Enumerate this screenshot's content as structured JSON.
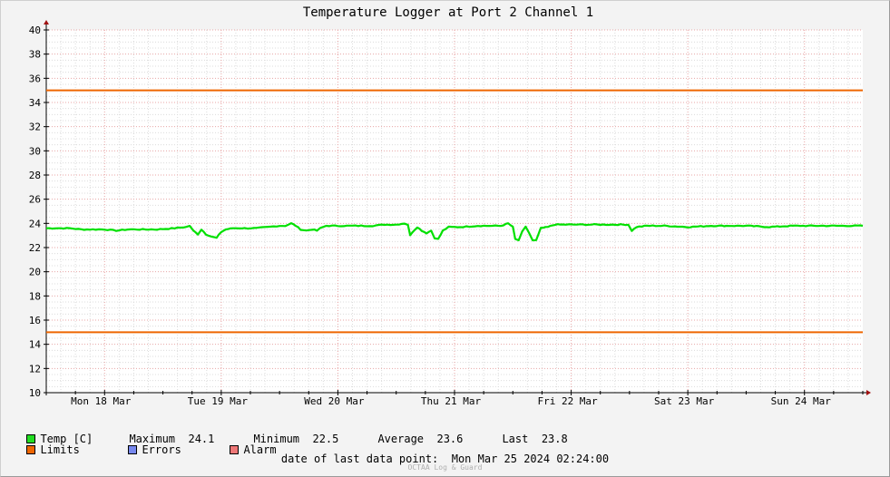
{
  "chart_data": {
    "type": "line",
    "title": "Temperature Logger at Port 2 Channel 1",
    "xlabel": "",
    "ylabel": "",
    "x_start_label": "Mon 18 Mar",
    "x_tick_labels": [
      "Mon 18 Mar",
      "Tue 19 Mar",
      "Wed 20 Mar",
      "Thu 21 Mar",
      "Fri 22 Mar",
      "Sat 23 Mar",
      "Sun 24 Mar"
    ],
    "x_range_days": [
      0,
      7
    ],
    "ylim": [
      10,
      40
    ],
    "y_ticks": [
      10,
      12,
      14,
      16,
      18,
      20,
      22,
      24,
      26,
      28,
      30,
      32,
      34,
      36,
      38,
      40
    ],
    "grid": true,
    "series": [
      {
        "name": "Temp [C]",
        "color": "#00e000",
        "points": [
          [
            0.0,
            23.6
          ],
          [
            0.1,
            23.6
          ],
          [
            0.2,
            23.6
          ],
          [
            0.3,
            23.5
          ],
          [
            0.4,
            23.5
          ],
          [
            0.5,
            23.5
          ],
          [
            0.6,
            23.4
          ],
          [
            0.7,
            23.5
          ],
          [
            0.8,
            23.5
          ],
          [
            0.95,
            23.5
          ],
          [
            1.1,
            23.6
          ],
          [
            1.2,
            23.7
          ],
          [
            1.23,
            23.8
          ],
          [
            1.26,
            23.4
          ],
          [
            1.3,
            23.1
          ],
          [
            1.33,
            23.5
          ],
          [
            1.37,
            23.1
          ],
          [
            1.42,
            22.9
          ],
          [
            1.46,
            22.8
          ],
          [
            1.5,
            23.3
          ],
          [
            1.54,
            23.5
          ],
          [
            1.6,
            23.6
          ],
          [
            1.7,
            23.6
          ],
          [
            1.8,
            23.6
          ],
          [
            1.9,
            23.7
          ],
          [
            2.0,
            23.8
          ],
          [
            2.05,
            23.8
          ],
          [
            2.1,
            24.0
          ],
          [
            2.14,
            23.8
          ],
          [
            2.18,
            23.5
          ],
          [
            2.23,
            23.4
          ],
          [
            2.28,
            23.5
          ],
          [
            2.32,
            23.4
          ],
          [
            2.35,
            23.6
          ],
          [
            2.4,
            23.8
          ],
          [
            2.5,
            23.8
          ],
          [
            2.6,
            23.8
          ],
          [
            2.7,
            23.8
          ],
          [
            2.8,
            23.8
          ],
          [
            2.9,
            23.9
          ],
          [
            3.0,
            23.9
          ],
          [
            3.07,
            24.0
          ],
          [
            3.1,
            23.9
          ],
          [
            3.12,
            23.0
          ],
          [
            3.14,
            23.3
          ],
          [
            3.18,
            23.7
          ],
          [
            3.22,
            23.4
          ],
          [
            3.26,
            23.2
          ],
          [
            3.3,
            23.4
          ],
          [
            3.33,
            22.8
          ],
          [
            3.36,
            22.7
          ],
          [
            3.4,
            23.4
          ],
          [
            3.45,
            23.7
          ],
          [
            3.55,
            23.7
          ],
          [
            3.7,
            23.8
          ],
          [
            3.8,
            23.8
          ],
          [
            3.9,
            23.8
          ],
          [
            3.96,
            24.0
          ],
          [
            4.0,
            23.7
          ],
          [
            4.02,
            22.7
          ],
          [
            4.05,
            22.6
          ],
          [
            4.08,
            23.3
          ],
          [
            4.11,
            23.7
          ],
          [
            4.14,
            23.2
          ],
          [
            4.17,
            22.6
          ],
          [
            4.2,
            22.6
          ],
          [
            4.24,
            23.6
          ],
          [
            4.3,
            23.7
          ],
          [
            4.36,
            23.9
          ],
          [
            4.5,
            23.9
          ],
          [
            4.6,
            23.9
          ],
          [
            4.7,
            23.9
          ],
          [
            4.8,
            23.9
          ],
          [
            4.9,
            23.9
          ],
          [
            4.99,
            23.9
          ],
          [
            5.02,
            23.4
          ],
          [
            5.06,
            23.7
          ],
          [
            5.15,
            23.8
          ],
          [
            5.3,
            23.8
          ],
          [
            5.5,
            23.7
          ],
          [
            5.7,
            23.8
          ],
          [
            5.9,
            23.8
          ],
          [
            6.0,
            23.8
          ],
          [
            6.2,
            23.7
          ],
          [
            6.4,
            23.8
          ],
          [
            6.6,
            23.8
          ],
          [
            6.8,
            23.8
          ],
          [
            7.0,
            23.8
          ]
        ]
      },
      {
        "name": "Limits",
        "color": "#ee6600",
        "constant_values": [
          35,
          15
        ]
      }
    ]
  },
  "legend": {
    "temp_label": "Temp [C]",
    "maximum_label": "Maximum",
    "maximum_value": "24.1",
    "minimum_label": "Minimum",
    "minimum_value": "22.5",
    "average_label": "Average",
    "average_value": "23.6",
    "last_label": "Last",
    "last_value": "23.8",
    "limits_label": "Limits",
    "errors_label": "Errors",
    "alarm_label": "Alarm",
    "colors": {
      "temp": "#22dd22",
      "limits": "#ee6600",
      "errors": "#7788ee",
      "alarm": "#ee7777"
    }
  },
  "footer": {
    "last_data_label": "date of last data point:",
    "last_data_value": "Mon Mar 25 2024 02:24:00",
    "credit": "OCTAA Log & Guard"
  }
}
